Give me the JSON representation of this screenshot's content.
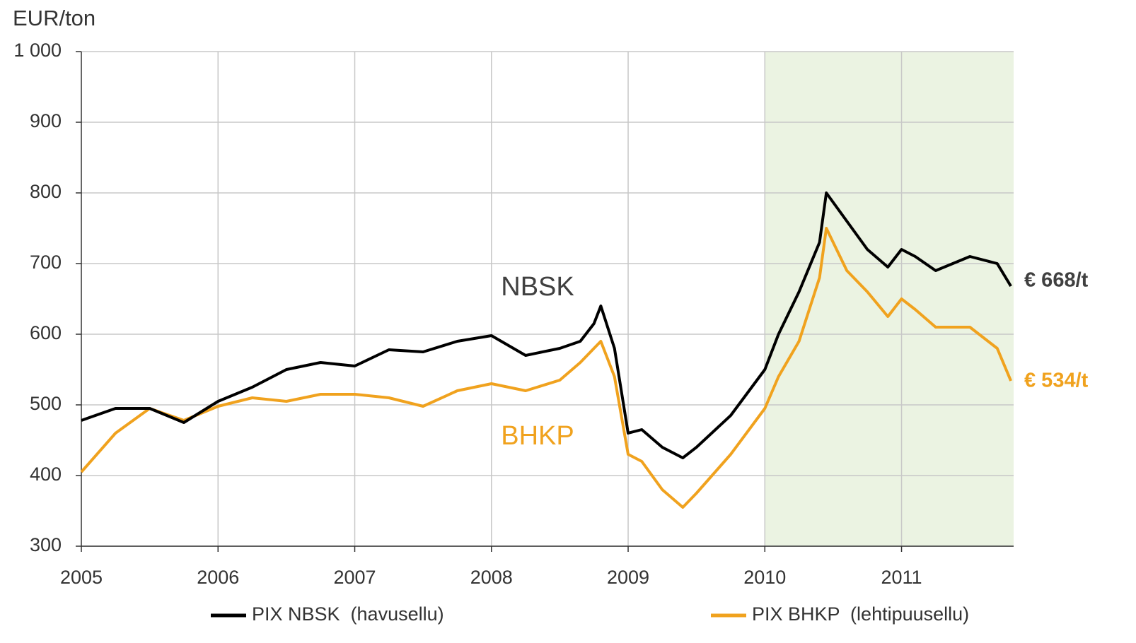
{
  "chart_data": {
    "type": "line",
    "y_label": "EUR/ton",
    "xlim": [
      2005,
      2011.82
    ],
    "ylim": [
      300,
      1000
    ],
    "xticks": [
      2005,
      2006,
      2007,
      2008,
      2009,
      2010,
      2011
    ],
    "yticks": [
      300,
      400,
      500,
      600,
      700,
      800,
      900,
      {
        "value": 1000,
        "label": "1 000"
      }
    ],
    "grid": true,
    "shade": {
      "from": 2010,
      "to": 2011.82,
      "color": "#ebf3e2"
    },
    "x": [
      2005,
      2005.25,
      2005.5,
      2005.75,
      2006,
      2006.25,
      2006.5,
      2006.75,
      2007,
      2007.25,
      2007.5,
      2007.75,
      2008,
      2008.25,
      2008.5,
      2008.65,
      2008.75,
      2008.8,
      2008.9,
      2009,
      2009.1,
      2009.25,
      2009.4,
      2009.5,
      2009.75,
      2010,
      2010.1,
      2010.25,
      2010.4,
      2010.45,
      2010.6,
      2010.75,
      2010.9,
      2011,
      2011.1,
      2011.25,
      2011.5,
      2011.7,
      2011.8
    ],
    "series": [
      {
        "name": "PIX NBSK  (havusellu)",
        "short_name": "NBSK",
        "end_label": "€ 668/t",
        "color": "#000000",
        "label_color": "#404040",
        "values": [
          478,
          495,
          495,
          475,
          505,
          525,
          550,
          560,
          555,
          578,
          575,
          590,
          598,
          570,
          580,
          590,
          615,
          640,
          580,
          460,
          465,
          440,
          425,
          440,
          485,
          550,
          600,
          660,
          730,
          800,
          760,
          720,
          695,
          720,
          710,
          690,
          710,
          700,
          668
        ]
      },
      {
        "name": "PIX BHKP  (lehtipuusellu)",
        "short_name": "BHKP",
        "end_label": "€ 534/t",
        "color": "#f0a21e",
        "label_color": "#f0a21e",
        "values": [
          405,
          460,
          495,
          478,
          498,
          510,
          505,
          515,
          515,
          510,
          498,
          520,
          530,
          520,
          535,
          560,
          580,
          590,
          540,
          430,
          420,
          380,
          355,
          375,
          430,
          495,
          540,
          590,
          680,
          750,
          690,
          660,
          625,
          650,
          635,
          610,
          610,
          580,
          534
        ]
      }
    ]
  }
}
